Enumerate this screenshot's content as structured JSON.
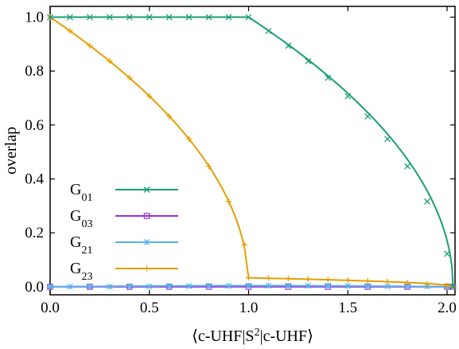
{
  "chart_data": {
    "type": "line",
    "title": "",
    "xlabel": "⟨c-UHF|S²|c-UHF⟩",
    "ylabel": "overlap",
    "xlim": [
      0.0,
      2.04
    ],
    "ylim": [
      -0.03,
      1.04
    ],
    "xticks": [
      "0.0",
      "0.5",
      "1.0",
      "1.5",
      "2.0"
    ],
    "xtick_values": [
      0.0,
      0.5,
      1.0,
      1.5,
      2.0
    ],
    "yticks": [
      "0.0",
      "0.2",
      "0.4",
      "0.6",
      "0.8",
      "1.0"
    ],
    "ytick_values": [
      0.0,
      0.2,
      0.4,
      0.6,
      0.8,
      1.0
    ],
    "grid": false,
    "legend_position": "left, lower-middle",
    "series": [
      {
        "name": "G01",
        "color": "#1a9e77",
        "marker": "x",
        "x": [
          0.0,
          0.1,
          0.2,
          0.3,
          0.4,
          0.5,
          0.6,
          0.7,
          0.8,
          0.9,
          1.0,
          1.1,
          1.2,
          1.3,
          1.4,
          1.5,
          1.6,
          1.7,
          1.8,
          1.9,
          2.0,
          2.03
        ],
        "y": [
          1.0,
          1.0,
          1.0,
          1.0,
          1.0,
          1.0,
          1.0,
          1.0,
          1.0,
          1.0,
          1.0,
          0.949,
          0.894,
          0.837,
          0.775,
          0.707,
          0.632,
          0.548,
          0.447,
          0.316,
          0.122,
          0.0
        ]
      },
      {
        "name": "G03",
        "color": "#9b30d9",
        "marker": "square",
        "x": [
          0.0,
          0.2,
          0.4,
          0.6,
          0.8,
          1.0,
          1.2,
          1.4,
          1.6,
          1.8,
          2.0,
          2.03
        ],
        "y": [
          0.0,
          0.0,
          0.0,
          0.0,
          0.0,
          0.0,
          0.0,
          0.0,
          0.0,
          0.0,
          0.0,
          0.0
        ]
      },
      {
        "name": "G21",
        "color": "#56b4e9",
        "marker": "asterisk",
        "x": [
          0.0,
          0.1,
          0.2,
          0.3,
          0.4,
          0.5,
          0.6,
          0.7,
          0.8,
          0.9,
          1.0,
          1.1,
          1.2,
          1.3,
          1.4,
          1.5,
          1.6,
          1.7,
          1.8,
          1.9,
          2.0,
          2.03
        ],
        "y": [
          0.0,
          0.0,
          0.0,
          0.0,
          0.001,
          0.001,
          0.002,
          0.002,
          0.003,
          0.003,
          0.004,
          0.004,
          0.004,
          0.004,
          0.004,
          0.003,
          0.003,
          0.002,
          0.002,
          0.001,
          0.0,
          0.0
        ]
      },
      {
        "name": "G23",
        "color": "#e69f00",
        "marker": "plus",
        "x": [
          0.0,
          0.1,
          0.2,
          0.3,
          0.4,
          0.5,
          0.6,
          0.7,
          0.8,
          0.9,
          0.98,
          1.0,
          1.1,
          1.2,
          1.3,
          1.4,
          1.5,
          1.6,
          1.7,
          1.8,
          1.9,
          2.0,
          2.03
        ],
        "y": [
          1.0,
          0.949,
          0.894,
          0.837,
          0.775,
          0.707,
          0.632,
          0.548,
          0.447,
          0.316,
          0.155,
          0.033,
          0.032,
          0.031,
          0.029,
          0.027,
          0.025,
          0.022,
          0.019,
          0.015,
          0.01,
          0.004,
          0.0
        ]
      }
    ]
  }
}
